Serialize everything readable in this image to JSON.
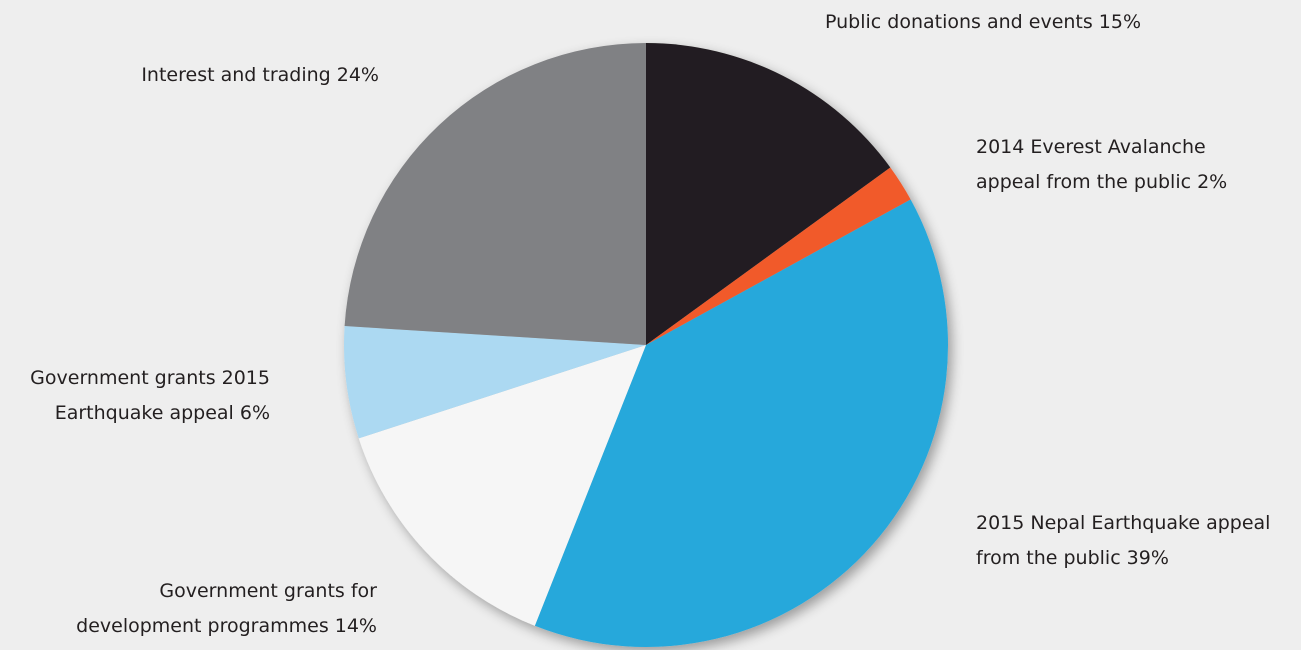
{
  "chart_data": {
    "type": "pie",
    "start": "12 o'clock",
    "direction": "clockwise",
    "slices": [
      {
        "label_lines": [
          "Public donations and events 15%"
        ],
        "value": 15,
        "color": "#231f20"
      },
      {
        "label_lines": [
          "2014 Everest Avalanche",
          "appeal from the public 2%"
        ],
        "value": 2,
        "color": "#f15a2b"
      },
      {
        "label_lines": [
          "2015 Nepal Earthquake appeal",
          "from the public 39%"
        ],
        "value": 39,
        "color": "#27a8db"
      },
      {
        "label_lines": [
          "Government grants for",
          "development programmes 14%"
        ],
        "value": 14,
        "color": "#f6f6f6"
      },
      {
        "label_lines": [
          "Government grants 2015",
          "Earthquake appeal 6%"
        ],
        "value": 6,
        "color": "#acd9f2"
      },
      {
        "label_lines": [
          "Interest and trading 24%"
        ],
        "value": 24,
        "color": "#808184"
      }
    ]
  }
}
